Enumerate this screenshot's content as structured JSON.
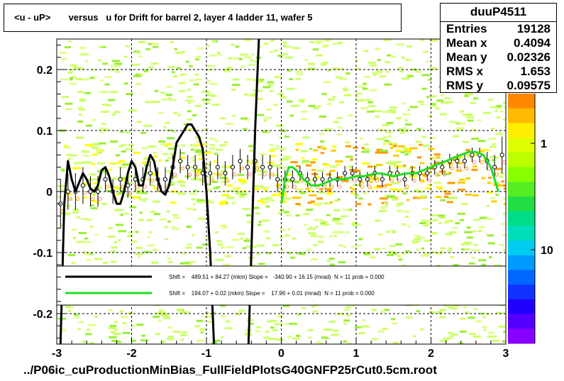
{
  "title": "<u - uP>       versus   u for Drift for barrel 2, layer 4 ladder 11, wafer 5",
  "footer": "../P06ic_cuProductionMinBias_FullFieldPlotsG40GNFP25rCut0.5cm.root",
  "stats": {
    "name": "duuP4511",
    "rows": [
      {
        "label": "Entries",
        "value": "19128"
      },
      {
        "label": "Mean x",
        "value": "0.4094"
      },
      {
        "label": "Mean y",
        "value": "0.02326"
      },
      {
        "label": "RMS x",
        "value": "1.653"
      },
      {
        "label": "RMS y",
        "value": "0.09575"
      }
    ]
  },
  "colors": {
    "black_fit": "#000000",
    "green_fit": "#22dd22",
    "profile": "#000000",
    "marker_pink": "#ff8888",
    "marker_orange": "#ff9900"
  },
  "chart_data": {
    "type": "scatter",
    "xlim": [
      -3,
      3
    ],
    "ylim": [
      -0.25,
      0.25
    ],
    "x_ticks": [
      -3,
      -2,
      -1,
      0,
      1,
      2,
      3
    ],
    "x_tick_labels": [
      "-3",
      "-2",
      "-1",
      "0",
      "1",
      "2",
      "3"
    ],
    "y_ticks": [
      -0.2,
      -0.1,
      0,
      0.1,
      0.2
    ],
    "y_tick_labels": [
      "-0.2",
      "-0.1",
      "0",
      "0.1",
      "0.2"
    ],
    "z_tick_labels": [
      "1",
      "10"
    ],
    "grid": true,
    "legend_position": "bottom",
    "legend": [
      {
        "series": "black",
        "text": "Shift =    489.51 + 84.27 (mkm) Slope =   -340.90 + 16.15 (mrad)  N = 11 prob = 0.000"
      },
      {
        "series": "green",
        "text": "Shift =    194.07 + 0.02 (mkm) Slope =    17.96 + 0.01 (mrad)  N = 11 prob = 0.000"
      }
    ],
    "profile": {
      "x": [
        -2.95,
        -2.85,
        -2.75,
        -2.65,
        -2.55,
        -2.45,
        -2.35,
        -2.25,
        -2.15,
        -2.05,
        -1.95,
        -1.85,
        -1.75,
        -1.65,
        -1.55,
        -1.45,
        -1.35,
        -1.25,
        -1.15,
        -1.05,
        -0.95,
        -0.85,
        -0.75,
        -0.65,
        -0.55,
        -0.45,
        -0.35,
        -0.25,
        -0.15,
        -0.05,
        0.05,
        0.15,
        0.25,
        0.35,
        0.45,
        0.55,
        0.65,
        0.75,
        0.85,
        0.95,
        1.05,
        1.15,
        1.25,
        1.35,
        1.45,
        1.55,
        1.65,
        1.75,
        1.85,
        1.95,
        2.05,
        2.15,
        2.25,
        2.35,
        2.45,
        2.55,
        2.65,
        2.75,
        2.85,
        2.95
      ],
      "y": [
        -0.02,
        0.0,
        0.0,
        0.01,
        0.0,
        0.0,
        0.02,
        0.0,
        0.02,
        0.01,
        0.02,
        0.02,
        0.03,
        0.02,
        0.02,
        0.04,
        0.05,
        0.04,
        0.04,
        0.03,
        0.03,
        0.04,
        0.03,
        0.04,
        0.05,
        0.04,
        0.05,
        0.04,
        0.04,
        0.02,
        0.02,
        0.02,
        0.03,
        0.02,
        0.02,
        0.02,
        0.02,
        0.02,
        0.03,
        0.03,
        0.02,
        0.02,
        0.03,
        0.02,
        0.03,
        0.03,
        0.02,
        0.03,
        0.03,
        0.03,
        0.04,
        0.04,
        0.05,
        0.05,
        0.05,
        0.06,
        0.06,
        0.05,
        0.04,
        0.06
      ],
      "err": [
        0.04,
        0.03,
        0.03,
        0.03,
        0.025,
        0.025,
        0.02,
        0.02,
        0.02,
        0.02,
        0.02,
        0.02,
        0.02,
        0.02,
        0.02,
        0.02,
        0.02,
        0.02,
        0.02,
        0.02,
        0.02,
        0.02,
        0.02,
        0.02,
        0.02,
        0.02,
        0.02,
        0.02,
        0.02,
        0.02,
        0.015,
        0.015,
        0.012,
        0.012,
        0.012,
        0.012,
        0.012,
        0.012,
        0.012,
        0.012,
        0.012,
        0.012,
        0.012,
        0.012,
        0.012,
        0.012,
        0.012,
        0.012,
        0.012,
        0.012,
        0.012,
        0.012,
        0.012,
        0.012,
        0.012,
        0.012,
        0.012,
        0.015,
        0.02,
        0.03
      ]
    },
    "series": [
      {
        "x": [
          -2.95,
          -2.9,
          -2.85,
          -2.8,
          -2.75,
          -2.7,
          -2.65,
          -2.6,
          -2.55,
          -2.5,
          -2.45,
          -2.4,
          -2.35,
          -2.3,
          -2.25,
          -2.2,
          -2.15,
          -2.1,
          -2.05,
          -2.0,
          -1.95,
          -1.9,
          -1.85,
          -1.8,
          -1.75,
          -1.7,
          -1.65,
          -1.6,
          -1.55,
          -1.5,
          -1.45,
          -1.4,
          -1.35,
          -1.3,
          -1.25,
          -1.2,
          -1.15,
          -1.1,
          -1.05,
          -1.0,
          -0.95,
          -0.9,
          -0.85,
          -0.8
        ],
        "y": [
          -0.25,
          -0.02,
          0.05,
          0.02,
          0.0,
          0.015,
          0.03,
          0.02,
          0.005,
          0.0,
          0.01,
          0.035,
          0.04,
          0.025,
          0.0,
          -0.02,
          -0.02,
          0.0,
          0.03,
          0.05,
          0.04,
          0.01,
          0.01,
          0.04,
          0.06,
          0.05,
          0.02,
          0.0,
          -0.005,
          0.01,
          0.04,
          0.08,
          0.09,
          0.1,
          0.11,
          0.11,
          0.1,
          0.09,
          0.07,
          0.0,
          -0.1,
          -0.25,
          -0.3,
          -0.3
        ]
      },
      {
        "x": [
          -0.45,
          -0.4,
          -0.35,
          -0.3,
          -0.25
        ],
        "y": [
          -0.3,
          -0.1,
          0.1,
          0.25,
          0.3
        ]
      },
      {
        "x": [
          0.0,
          0.05,
          0.1,
          0.15,
          0.2,
          0.3,
          0.4,
          0.5,
          0.6,
          0.7,
          0.8,
          0.9,
          1.0,
          1.1,
          1.2,
          1.3,
          1.4,
          1.5,
          1.6,
          1.7,
          1.8,
          1.9,
          2.0,
          2.1,
          2.2,
          2.3,
          2.4,
          2.5,
          2.6,
          2.7,
          2.8,
          2.9
        ],
        "y": [
          -0.02,
          0.02,
          0.04,
          0.04,
          0.035,
          0.02,
          0.01,
          0.01,
          0.015,
          0.02,
          0.02,
          0.022,
          0.025,
          0.025,
          0.028,
          0.03,
          0.028,
          0.025,
          0.028,
          0.03,
          0.03,
          0.035,
          0.04,
          0.045,
          0.05,
          0.055,
          0.06,
          0.065,
          0.065,
          0.06,
          0.04,
          0.0
        ]
      }
    ]
  }
}
